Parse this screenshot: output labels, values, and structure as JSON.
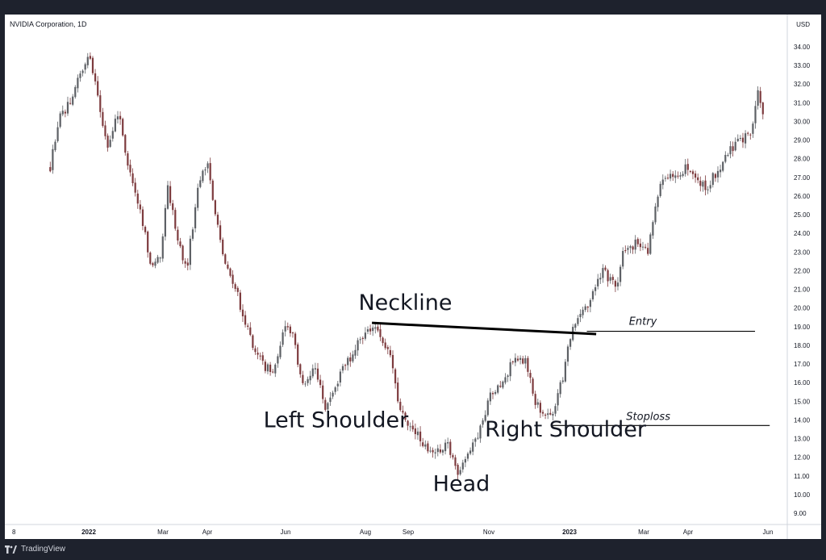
{
  "header": {
    "symbol": "NVIDIA Corporation, 1D",
    "currency": "USD"
  },
  "footer": {
    "brand": "TradingView"
  },
  "colors": {
    "up": "#5d6065",
    "down": "#7d3b3e",
    "line": "#000000",
    "text": "#131722"
  },
  "chart_data": {
    "type": "candlestick",
    "title": "NVIDIA Corporation, 1D",
    "ylabel": "USD",
    "ylim": [
      8.2,
      36.4
    ],
    "yticks": [
      9,
      10,
      11,
      12,
      13,
      14,
      15,
      16,
      17,
      18,
      19,
      20,
      21,
      22,
      23,
      24,
      25,
      26,
      27,
      28,
      29,
      30,
      31,
      32,
      33,
      34
    ],
    "xticks": [
      "8",
      "2022",
      "Mar",
      "Apr",
      "Jun",
      "Aug",
      "Sep",
      "Nov",
      "2023",
      "Mar",
      "Apr",
      "Jun"
    ],
    "grid": false,
    "price_path": [
      [
        "2021-12-08",
        27.5
      ],
      [
        "2021-12-14",
        30.0
      ],
      [
        "2021-12-22",
        31.0
      ],
      [
        "2021-12-30",
        32.5
      ],
      [
        "2022-01-06",
        33.5
      ],
      [
        "2022-01-12",
        31.5
      ],
      [
        "2022-01-20",
        28.5
      ],
      [
        "2022-01-28",
        30.5
      ],
      [
        "2022-02-06",
        27.0
      ],
      [
        "2022-02-14",
        25.0
      ],
      [
        "2022-02-22",
        22.0
      ],
      [
        "2022-03-01",
        23.0
      ],
      [
        "2022-03-06",
        26.5
      ],
      [
        "2022-03-14",
        23.5
      ],
      [
        "2022-03-20",
        22.0
      ],
      [
        "2022-03-29",
        26.5
      ],
      [
        "2022-04-05",
        28.0
      ],
      [
        "2022-04-10",
        25.0
      ],
      [
        "2022-04-18",
        22.5
      ],
      [
        "2022-04-26",
        21.0
      ],
      [
        "2022-05-06",
        18.5
      ],
      [
        "2022-05-16",
        17.0
      ],
      [
        "2022-05-24",
        16.5
      ],
      [
        "2022-06-01",
        19.0
      ],
      [
        "2022-06-08",
        18.5
      ],
      [
        "2022-06-16",
        15.5
      ],
      [
        "2022-06-24",
        17.0
      ],
      [
        "2022-07-02",
        14.5
      ],
      [
        "2022-07-14",
        16.5
      ],
      [
        "2022-07-28",
        18.3
      ],
      [
        "2022-08-06",
        19.0
      ],
      [
        "2022-08-13",
        18.5
      ],
      [
        "2022-08-20",
        17.5
      ],
      [
        "2022-08-27",
        14.5
      ],
      [
        "2022-09-06",
        13.5
      ],
      [
        "2022-09-16",
        12.5
      ],
      [
        "2022-09-25",
        12.2
      ],
      [
        "2022-10-02",
        12.8
      ],
      [
        "2022-10-08",
        11.2
      ],
      [
        "2022-10-14",
        11.5
      ],
      [
        "2022-10-26",
        13.5
      ],
      [
        "2022-11-04",
        15.5
      ],
      [
        "2022-11-12",
        16.0
      ],
      [
        "2022-11-22",
        17.5
      ],
      [
        "2022-11-30",
        17.0
      ],
      [
        "2022-12-06",
        15.0
      ],
      [
        "2022-12-12",
        14.2
      ],
      [
        "2022-12-20",
        14.5
      ],
      [
        "2022-12-26",
        16.0
      ],
      [
        "2023-01-02",
        18.5
      ],
      [
        "2023-01-08",
        19.5
      ],
      [
        "2023-01-17",
        20.5
      ],
      [
        "2023-01-26",
        22.0
      ],
      [
        "2023-02-05",
        21.0
      ],
      [
        "2023-02-10",
        23.0
      ],
      [
        "2023-02-20",
        23.5
      ],
      [
        "2023-03-01",
        23.0
      ],
      [
        "2023-03-09",
        26.5
      ],
      [
        "2023-03-19",
        27.0
      ],
      [
        "2023-03-28",
        27.5
      ],
      [
        "2023-04-05",
        27.0
      ],
      [
        "2023-04-14",
        26.5
      ],
      [
        "2023-04-23",
        27.5
      ],
      [
        "2023-05-02",
        28.5
      ],
      [
        "2023-05-10",
        29.0
      ],
      [
        "2023-05-17",
        29.5
      ],
      [
        "2023-05-22",
        31.5
      ],
      [
        "2023-05-26",
        30.3
      ]
    ],
    "annotations": [
      {
        "text": "Neckline",
        "x": "2022-08-31",
        "y": 19.9
      },
      {
        "text": "Left Shoulder",
        "x": "2022-07-10",
        "y": 13.6
      },
      {
        "text": "Head",
        "x": "2022-10-12",
        "y": 10.2
      },
      {
        "text": "Right Shoulder",
        "x": "2022-12-29",
        "y": 13.1
      },
      {
        "text": "Entry",
        "x": "2023-02-25",
        "y": 19.1
      },
      {
        "text": "Stoploss",
        "x": "2023-03-01",
        "y": 14.0
      }
    ],
    "lines": [
      {
        "name": "neckline",
        "from": [
          "2022-08-06",
          19.2
        ],
        "to": [
          "2023-01-21",
          18.6
        ]
      },
      {
        "name": "entry-line",
        "from": [
          "2023-01-14",
          18.75
        ],
        "to": [
          "2023-05-20",
          18.75
        ]
      },
      {
        "name": "stoploss-line",
        "from": [
          "2022-12-18",
          13.7
        ],
        "to": [
          "2023-05-31",
          13.7
        ]
      }
    ]
  }
}
